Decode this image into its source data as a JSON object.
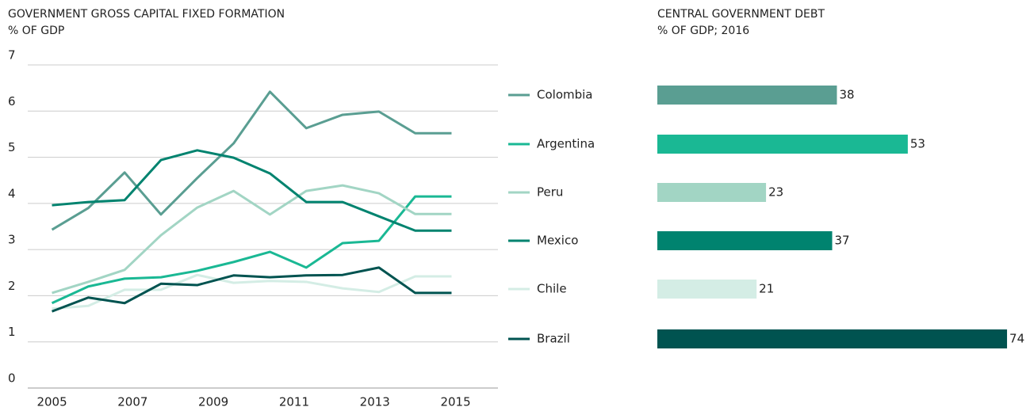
{
  "chart_data": [
    {
      "type": "line",
      "title": "GOVERNMENT GROSS CAPITAL FIXED FORMATION",
      "subtitle": "% OF GDP",
      "x": [
        2005,
        2005.9,
        2006.8,
        2007.7,
        2008.6,
        2009.5,
        2010.4,
        2011.3,
        2012.2,
        2013.1,
        2014,
        2014.9
      ],
      "xlim": [
        2004.4,
        2016.05
      ],
      "xticks": [
        2005,
        2007,
        2009,
        2011,
        2013,
        2015
      ],
      "ylim": [
        0,
        7
      ],
      "yticks": [
        0,
        1,
        2,
        3,
        4,
        5,
        6,
        7
      ],
      "grid": true,
      "series": [
        {
          "name": "Colombia",
          "color": "#5a9e92",
          "values": [
            3.43,
            3.9,
            4.67,
            3.76,
            4.55,
            5.3,
            6.42,
            5.63,
            5.92,
            5.99,
            5.52,
            5.52
          ]
        },
        {
          "name": "Argentina",
          "color": "#1ab894",
          "values": [
            1.84,
            2.2,
            2.37,
            2.4,
            2.54,
            2.73,
            2.95,
            2.61,
            3.14,
            3.19,
            4.15,
            4.15
          ]
        },
        {
          "name": "Peru",
          "color": "#a2d5c4",
          "values": [
            2.06,
            2.3,
            2.56,
            3.31,
            3.91,
            4.27,
            3.76,
            4.27,
            4.39,
            4.22,
            3.77,
            3.77
          ]
        },
        {
          "name": "Mexico",
          "color": "#00836f",
          "values": [
            3.96,
            4.03,
            4.07,
            4.94,
            5.15,
            4.99,
            4.65,
            4.03,
            4.03,
            3.72,
            3.41,
            3.41
          ]
        },
        {
          "name": "Chile",
          "color": "#d4ede5",
          "values": [
            1.72,
            1.78,
            2.13,
            2.13,
            2.45,
            2.28,
            2.32,
            2.3,
            2.16,
            2.08,
            2.42,
            2.42
          ]
        },
        {
          "name": "Brazil",
          "color": "#005350",
          "values": [
            1.66,
            1.96,
            1.84,
            2.26,
            2.23,
            2.44,
            2.4,
            2.44,
            2.45,
            2.61,
            2.06,
            2.06
          ]
        }
      ]
    },
    {
      "type": "barh",
      "title": "CENTRAL GOVERNMENT DEBT",
      "subtitle": "% OF GDP; 2016",
      "xlim": [
        0,
        75
      ],
      "values": [
        38,
        53,
        23,
        37,
        21,
        74
      ],
      "colors": [
        "#5a9e92",
        "#1ab894",
        "#a2d5c4",
        "#00836f",
        "#d4ede5",
        "#005350"
      ]
    }
  ]
}
